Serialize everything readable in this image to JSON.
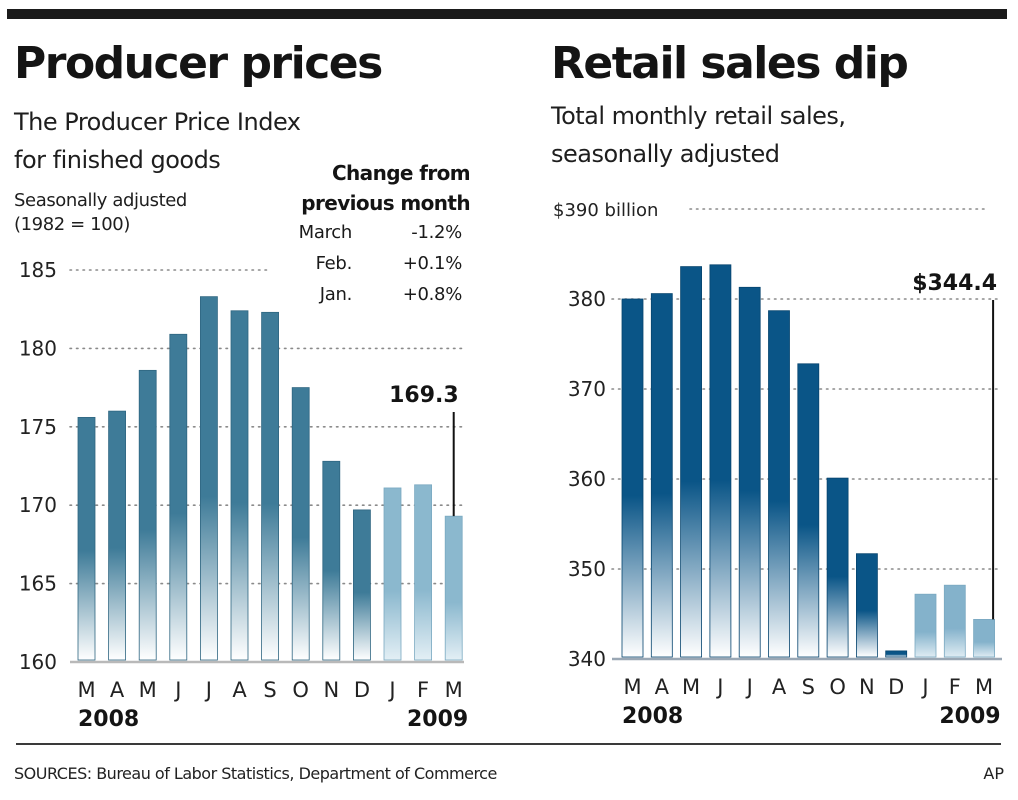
{
  "chart_data": [
    {
      "type": "bar",
      "title": "Producer prices",
      "subtitle": [
        "The Producer Price Index",
        "for finished goods"
      ],
      "note": [
        "Seasonally adjusted",
        "(1982 = 100)"
      ],
      "categories": [
        "M",
        "A",
        "M",
        "J",
        "J",
        "A",
        "S",
        "O",
        "N",
        "D",
        "J",
        "F",
        "M"
      ],
      "values": [
        175.6,
        176.0,
        178.6,
        180.9,
        183.3,
        182.4,
        182.3,
        177.5,
        172.8,
        169.7,
        171.1,
        171.3,
        169.3
      ],
      "year_labels": {
        "start": "2008",
        "end": "2009"
      },
      "highlight_from_index": 10,
      "ylim": [
        160,
        185
      ],
      "yticks": [
        "160",
        "165",
        "170",
        "175",
        "180",
        "185"
      ],
      "ytick_values": [
        160,
        165,
        170,
        175,
        180,
        185
      ],
      "grid": true,
      "callout": {
        "label": "169.3",
        "index": 12
      },
      "colors": {
        "dark": "#3e7b98",
        "light": "#8bb8ce"
      },
      "change_table": {
        "title": [
          "Change from",
          "previous month"
        ],
        "rows": [
          {
            "month": "March",
            "value": "-1.2%"
          },
          {
            "month": "Feb.",
            "value": "+0.1%"
          },
          {
            "month": "Jan.",
            "value": "+0.8%"
          }
        ]
      }
    },
    {
      "type": "bar",
      "title": "Retail sales dip",
      "subtitle": [
        "Total monthly retail sales,",
        "seasonally adjusted"
      ],
      "categories": [
        "M",
        "A",
        "M",
        "J",
        "J",
        "A",
        "S",
        "O",
        "N",
        "D",
        "J",
        "F",
        "M"
      ],
      "values": [
        380.0,
        380.6,
        383.6,
        383.8,
        381.3,
        378.7,
        372.8,
        360.1,
        351.7,
        340.9,
        347.2,
        348.2,
        344.4
      ],
      "year_labels": {
        "start": "2008",
        "end": "2009"
      },
      "highlight_from_index": 10,
      "ylim": [
        340,
        390
      ],
      "yticks": [
        "340",
        "350",
        "360",
        "370",
        "380",
        "$390 billion"
      ],
      "ytick_values": [
        340,
        350,
        360,
        370,
        380,
        390
      ],
      "grid": true,
      "callout": {
        "label": "$344.4",
        "index": 12
      },
      "colors": {
        "dark": "#0a5587",
        "light": "#84b2cb"
      }
    }
  ],
  "footer": {
    "sources": "SOURCES: Bureau of Labor Statistics, Department of Commerce",
    "credit": "AP"
  }
}
